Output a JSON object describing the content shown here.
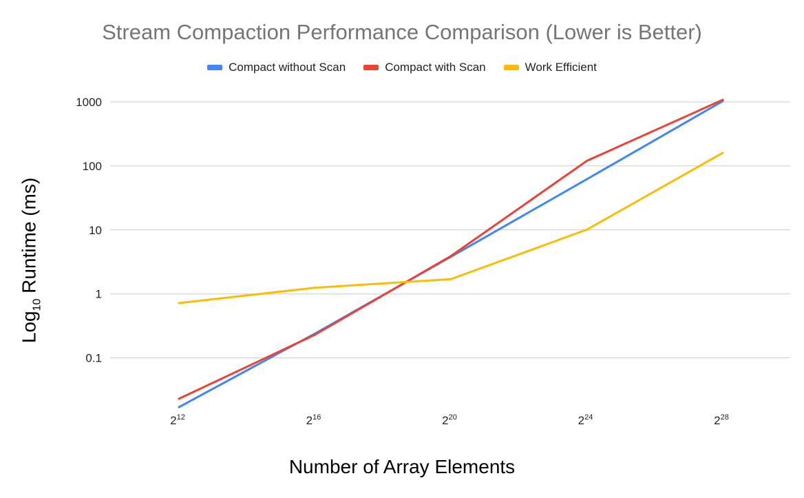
{
  "chart_data": {
    "type": "line",
    "title": "Stream Compaction Performance Comparison (Lower is Better)",
    "xlabel": "Number of Array Elements",
    "ylabel": {
      "prefix": "Log",
      "subscript": "10",
      "suffix": " Runtime (ms)"
    },
    "y_scale": "log",
    "ylim": [
      0.01,
      1000
    ],
    "y_ticks": [
      {
        "value": 1000,
        "label": "1000"
      },
      {
        "value": 100,
        "label": "100"
      },
      {
        "value": 10,
        "label": "10"
      },
      {
        "value": 1,
        "label": "1"
      },
      {
        "value": 0.1,
        "label": "0.1"
      }
    ],
    "categories": [
      {
        "base": "2",
        "exp": "12"
      },
      {
        "base": "2",
        "exp": "16"
      },
      {
        "base": "2",
        "exp": "20"
      },
      {
        "base": "2",
        "exp": "24"
      },
      {
        "base": "2",
        "exp": "28"
      }
    ],
    "series": [
      {
        "name": "Compact without Scan",
        "color": "#4285f4",
        "values": [
          0.017,
          0.24,
          3.8,
          62,
          1030
        ]
      },
      {
        "name": "Compact with Scan",
        "color": "#ea4335",
        "values": [
          0.023,
          0.23,
          3.9,
          120,
          1080
        ]
      },
      {
        "name": "Work Efficient",
        "color": "#fbbc04",
        "values": [
          0.72,
          1.25,
          1.7,
          10.1,
          160
        ]
      }
    ],
    "grid": true,
    "legend_position": "top"
  }
}
